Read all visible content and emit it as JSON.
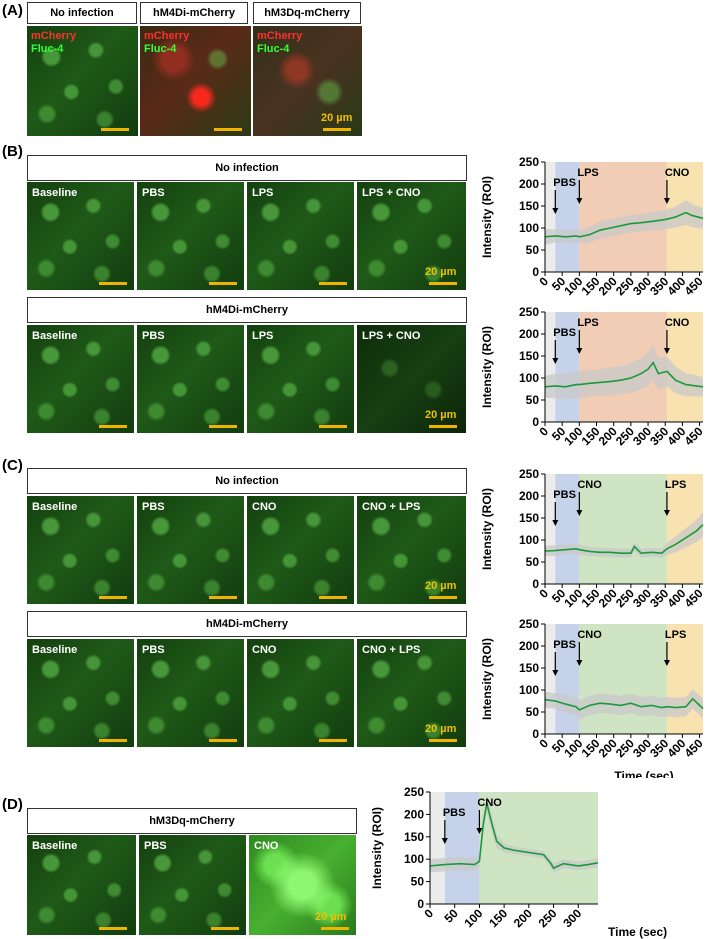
{
  "panels": {
    "A": {
      "label": "(A)",
      "headers": [
        "No infection",
        "hM4Di-mCherry",
        "hM3Dq-mCherry"
      ],
      "channels": [
        "mCherry",
        "Fluc-4"
      ],
      "scale": "20 µm"
    },
    "B": {
      "label": "(B)",
      "rows": [
        {
          "header": "No infection",
          "tiles": [
            "Baseline",
            "PBS",
            "LPS",
            "LPS + CNO"
          ],
          "scale": "20 µm"
        },
        {
          "header": "hM4Di-mCherry",
          "tiles": [
            "Baseline",
            "PBS",
            "LPS",
            "LPS + CNO"
          ],
          "scale": "20 µm"
        }
      ]
    },
    "C": {
      "label": "(C)",
      "rows": [
        {
          "header": "No infection",
          "tiles": [
            "Baseline",
            "PBS",
            "CNO",
            "CNO + LPS"
          ],
          "scale": "20 µm"
        },
        {
          "header": "hM4Di-mCherry",
          "tiles": [
            "Baseline",
            "PBS",
            "CNO",
            "CNO + LPS"
          ],
          "scale": "20 µm"
        }
      ]
    },
    "D": {
      "label": "(D)",
      "header": "hM3Dq-mCherry",
      "tiles": [
        "Baseline",
        "PBS",
        "CNO"
      ],
      "scale": "20 µm"
    }
  },
  "colors": {
    "trace": "#1a9a3a",
    "band": "#c8c8c8",
    "pbs_region": "#c6d2ea",
    "lps_region": "#f2cdb6",
    "cno_region_orange": "#f7e2b0",
    "cno_region_green": "#cfe4c3",
    "scalebar": "#f0b400"
  },
  "chart_data": [
    {
      "id": "B1",
      "type": "line",
      "ylabel": "Intensity (ROI)",
      "xlabel": "",
      "xlim": [
        0,
        460
      ],
      "ylim": [
        0,
        250
      ],
      "xticks": [
        0,
        50,
        100,
        150,
        200,
        250,
        300,
        350,
        400,
        450
      ],
      "yticks": [
        0,
        50,
        100,
        150,
        200,
        250
      ],
      "regions": [
        {
          "x0": 0,
          "x1": 30,
          "color": "#ececec"
        },
        {
          "x0": 30,
          "x1": 100,
          "color": "#c6d2ea"
        },
        {
          "x0": 100,
          "x1": 355,
          "color": "#f2cdb6"
        },
        {
          "x0": 355,
          "x1": 460,
          "color": "#f7e2b0"
        }
      ],
      "annotations": [
        {
          "text": "PBS",
          "x": 30
        },
        {
          "text": "LPS",
          "x": 100
        },
        {
          "text": "CNO",
          "x": 355
        }
      ],
      "x": [
        0,
        30,
        60,
        90,
        100,
        130,
        160,
        190,
        220,
        250,
        280,
        310,
        340,
        355,
        380,
        410,
        430,
        460
      ],
      "y": [
        80,
        82,
        80,
        82,
        80,
        85,
        95,
        100,
        105,
        110,
        112,
        115,
        118,
        120,
        125,
        135,
        128,
        122
      ],
      "band": [
        18,
        15,
        15,
        15,
        15,
        18,
        20,
        20,
        20,
        20,
        20,
        20,
        22,
        22,
        24,
        28,
        26,
        24
      ]
    },
    {
      "id": "B2",
      "type": "line",
      "ylabel": "Intensity (ROI)",
      "xlabel": "",
      "xlim": [
        0,
        460
      ],
      "ylim": [
        0,
        250
      ],
      "xticks": [
        0,
        50,
        100,
        150,
        200,
        250,
        300,
        350,
        400,
        450
      ],
      "yticks": [
        0,
        50,
        100,
        150,
        200,
        250
      ],
      "regions": [
        {
          "x0": 0,
          "x1": 30,
          "color": "#ececec"
        },
        {
          "x0": 30,
          "x1": 100,
          "color": "#c6d2ea"
        },
        {
          "x0": 100,
          "x1": 355,
          "color": "#f2cdb6"
        },
        {
          "x0": 355,
          "x1": 460,
          "color": "#f7e2b0"
        }
      ],
      "annotations": [
        {
          "text": "PBS",
          "x": 30
        },
        {
          "text": "LPS",
          "x": 100
        },
        {
          "text": "CNO",
          "x": 355
        }
      ],
      "x": [
        0,
        30,
        60,
        90,
        100,
        130,
        160,
        190,
        220,
        250,
        280,
        300,
        315,
        330,
        355,
        380,
        410,
        440,
        460
      ],
      "y": [
        80,
        82,
        80,
        85,
        85,
        88,
        90,
        92,
        95,
        100,
        110,
        120,
        135,
        110,
        115,
        95,
        85,
        82,
        80
      ],
      "band": [
        25,
        28,
        28,
        30,
        30,
        30,
        30,
        32,
        32,
        34,
        36,
        38,
        40,
        36,
        34,
        30,
        26,
        24,
        22
      ]
    },
    {
      "id": "C1",
      "type": "line",
      "ylabel": "Intensity (ROI)",
      "xlabel": "",
      "xlim": [
        0,
        460
      ],
      "ylim": [
        0,
        250
      ],
      "xticks": [
        0,
        50,
        100,
        150,
        200,
        250,
        300,
        350,
        400,
        450
      ],
      "yticks": [
        0,
        50,
        100,
        150,
        200,
        250
      ],
      "regions": [
        {
          "x0": 0,
          "x1": 30,
          "color": "#ececec"
        },
        {
          "x0": 30,
          "x1": 100,
          "color": "#c6d2ea"
        },
        {
          "x0": 100,
          "x1": 355,
          "color": "#cfe4c3"
        },
        {
          "x0": 355,
          "x1": 460,
          "color": "#f7e2b0"
        }
      ],
      "annotations": [
        {
          "text": "PBS",
          "x": 30
        },
        {
          "text": "CNO",
          "x": 100
        },
        {
          "text": "LPS",
          "x": 355
        }
      ],
      "x": [
        0,
        30,
        60,
        90,
        100,
        130,
        160,
        190,
        220,
        250,
        260,
        280,
        310,
        340,
        355,
        380,
        410,
        440,
        460
      ],
      "y": [
        75,
        76,
        78,
        80,
        78,
        74,
        72,
        72,
        70,
        70,
        85,
        70,
        72,
        70,
        80,
        90,
        105,
        120,
        135
      ],
      "band": [
        12,
        12,
        12,
        12,
        12,
        10,
        10,
        10,
        10,
        10,
        10,
        10,
        10,
        10,
        14,
        18,
        22,
        25,
        28
      ]
    },
    {
      "id": "C2",
      "type": "line",
      "ylabel": "Intensity (ROI)",
      "xlabel": "Time (sec)",
      "xlim": [
        0,
        460
      ],
      "ylim": [
        0,
        250
      ],
      "xticks": [
        0,
        50,
        100,
        150,
        200,
        250,
        300,
        350,
        400,
        450
      ],
      "yticks": [
        0,
        50,
        100,
        150,
        200,
        250
      ],
      "regions": [
        {
          "x0": 0,
          "x1": 30,
          "color": "#ececec"
        },
        {
          "x0": 30,
          "x1": 100,
          "color": "#c6d2ea"
        },
        {
          "x0": 100,
          "x1": 355,
          "color": "#cfe4c3"
        },
        {
          "x0": 355,
          "x1": 460,
          "color": "#f7e2b0"
        }
      ],
      "annotations": [
        {
          "text": "PBS",
          "x": 30
        },
        {
          "text": "CNO",
          "x": 100
        },
        {
          "text": "LPS",
          "x": 355
        }
      ],
      "x": [
        0,
        30,
        60,
        90,
        100,
        130,
        160,
        190,
        220,
        250,
        280,
        310,
        340,
        355,
        380,
        410,
        430,
        460
      ],
      "y": [
        78,
        75,
        68,
        62,
        55,
        65,
        70,
        68,
        65,
        70,
        62,
        65,
        60,
        62,
        60,
        62,
        80,
        58
      ],
      "band": [
        18,
        18,
        20,
        20,
        22,
        22,
        22,
        22,
        22,
        22,
        22,
        22,
        22,
        22,
        22,
        22,
        22,
        22
      ]
    },
    {
      "id": "D",
      "type": "line",
      "ylabel": "Intensity (ROI)",
      "xlabel": "Time (sec)",
      "xlim": [
        0,
        340
      ],
      "ylim": [
        0,
        250
      ],
      "xticks": [
        0,
        50,
        100,
        150,
        200,
        250,
        300
      ],
      "yticks": [
        0,
        50,
        100,
        150,
        200,
        250
      ],
      "regions": [
        {
          "x0": 0,
          "x1": 30,
          "color": "#ececec"
        },
        {
          "x0": 30,
          "x1": 100,
          "color": "#c6d2ea"
        },
        {
          "x0": 100,
          "x1": 340,
          "color": "#cfe4c3"
        }
      ],
      "annotations": [
        {
          "text": "PBS",
          "x": 30
        },
        {
          "text": "CNO",
          "x": 100
        }
      ],
      "x": [
        0,
        30,
        60,
        90,
        100,
        108,
        115,
        125,
        135,
        150,
        170,
        200,
        230,
        245,
        250,
        270,
        300,
        320,
        340
      ],
      "y": [
        85,
        88,
        90,
        88,
        95,
        180,
        225,
        180,
        140,
        125,
        120,
        115,
        110,
        90,
        80,
        90,
        85,
        88,
        92
      ],
      "band": [
        15,
        15,
        15,
        15,
        15,
        20,
        20,
        18,
        15,
        10,
        8,
        8,
        8,
        10,
        10,
        10,
        10,
        10,
        10
      ]
    }
  ]
}
